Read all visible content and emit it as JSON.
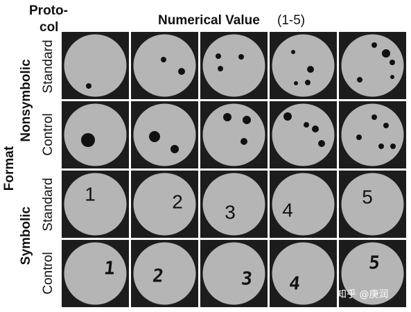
{
  "header": {
    "protocol_lines": [
      "Proto-",
      "col"
    ],
    "title": "Numerical Value",
    "title_range": "(1-5)"
  },
  "axis_label": "Format",
  "groups": [
    {
      "label": "Nonsymbolic",
      "rows": [
        "Standard",
        "Control"
      ]
    },
    {
      "label": "Symbolic",
      "rows": [
        "Standard",
        "Control"
      ]
    }
  ],
  "symbolic": {
    "standard": [
      "1",
      "2",
      "3",
      "4",
      "5"
    ],
    "control": [
      "1",
      "2",
      "3",
      "4",
      "5"
    ]
  },
  "watermark": "知乎 @庚润"
}
